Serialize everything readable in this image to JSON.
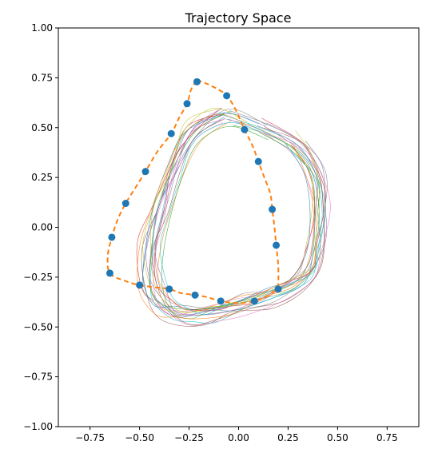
{
  "chart_data": {
    "type": "scatter",
    "title": "Trajectory Space",
    "xlabel": "",
    "ylabel": "",
    "xlim": [
      -0.91,
      0.91
    ],
    "ylim": [
      -1.0,
      1.0
    ],
    "grid": false,
    "x_ticks": [
      -0.75,
      -0.5,
      -0.25,
      0.0,
      0.25,
      0.5,
      0.75
    ],
    "x_tick_labels": [
      "−0.75",
      "−0.50",
      "−0.25",
      "0.00",
      "0.25",
      "0.50",
      "0.75"
    ],
    "y_ticks": [
      1.0,
      0.75,
      0.5,
      0.25,
      0.0,
      -0.25,
      -0.5,
      -0.75,
      -1.0
    ],
    "y_tick_labels": [
      "1.00",
      "0.75",
      "0.50",
      "0.25",
      "0.00",
      "−0.25",
      "−0.50",
      "−0.75",
      "−1.00"
    ],
    "colors": {
      "points": "#1f77b4",
      "dashed_curve": "#ff7f0e",
      "trajectories": [
        "#1f77b4",
        "#ff7f0e",
        "#2ca02c",
        "#d62728",
        "#9467bd",
        "#8c564b",
        "#e377c2",
        "#7f7f7f",
        "#bcbd22",
        "#17becf"
      ]
    },
    "points": [
      {
        "x": -0.21,
        "y": 0.73
      },
      {
        "x": -0.06,
        "y": 0.66
      },
      {
        "x": -0.26,
        "y": 0.62
      },
      {
        "x": 0.03,
        "y": 0.49
      },
      {
        "x": -0.34,
        "y": 0.47
      },
      {
        "x": 0.1,
        "y": 0.33
      },
      {
        "x": -0.47,
        "y": 0.28
      },
      {
        "x": -0.57,
        "y": 0.12
      },
      {
        "x": 0.17,
        "y": 0.09
      },
      {
        "x": -0.64,
        "y": -0.05
      },
      {
        "x": 0.19,
        "y": -0.09
      },
      {
        "x": -0.65,
        "y": -0.23
      },
      {
        "x": -0.5,
        "y": -0.29
      },
      {
        "x": -0.35,
        "y": -0.31
      },
      {
        "x": 0.2,
        "y": -0.31
      },
      {
        "x": -0.22,
        "y": -0.34
      },
      {
        "x": -0.09,
        "y": -0.37
      },
      {
        "x": 0.08,
        "y": -0.37
      }
    ],
    "dashed_curve": [
      [
        -0.21,
        0.74
      ],
      [
        -0.16,
        0.72
      ],
      [
        -0.1,
        0.69
      ],
      [
        -0.06,
        0.66
      ],
      [
        -0.02,
        0.6
      ],
      [
        0.03,
        0.49
      ],
      [
        0.07,
        0.41
      ],
      [
        0.1,
        0.33
      ],
      [
        0.13,
        0.25
      ],
      [
        0.16,
        0.17
      ],
      [
        0.17,
        0.09
      ],
      [
        0.18,
        0.01
      ],
      [
        0.19,
        -0.09
      ],
      [
        0.2,
        -0.19
      ],
      [
        0.2,
        -0.28
      ],
      [
        0.19,
        -0.31
      ],
      [
        0.15,
        -0.34
      ],
      [
        0.08,
        -0.37
      ],
      [
        0.0,
        -0.38
      ],
      [
        -0.09,
        -0.37
      ],
      [
        -0.16,
        -0.35
      ],
      [
        -0.22,
        -0.34
      ],
      [
        -0.29,
        -0.33
      ],
      [
        -0.35,
        -0.31
      ],
      [
        -0.43,
        -0.3
      ],
      [
        -0.5,
        -0.29
      ],
      [
        -0.57,
        -0.27
      ],
      [
        -0.65,
        -0.23
      ],
      [
        -0.66,
        -0.14
      ],
      [
        -0.64,
        -0.05
      ],
      [
        -0.61,
        0.04
      ],
      [
        -0.57,
        0.12
      ],
      [
        -0.52,
        0.2
      ],
      [
        -0.47,
        0.28
      ],
      [
        -0.41,
        0.38
      ],
      [
        -0.34,
        0.47
      ],
      [
        -0.3,
        0.55
      ],
      [
        -0.26,
        0.62
      ],
      [
        -0.24,
        0.69
      ],
      [
        -0.21,
        0.74
      ]
    ],
    "trajectories": {
      "count": 20,
      "base_loop": [
        [
          -0.08,
          0.57
        ],
        [
          0.1,
          0.51
        ],
        [
          0.28,
          0.42
        ],
        [
          0.38,
          0.28
        ],
        [
          0.4,
          0.1
        ],
        [
          0.38,
          -0.1
        ],
        [
          0.33,
          -0.24
        ],
        [
          0.18,
          -0.33
        ],
        [
          0.0,
          -0.38
        ],
        [
          -0.15,
          -0.42
        ],
        [
          -0.27,
          -0.44
        ],
        [
          -0.37,
          -0.4
        ],
        [
          -0.44,
          -0.3
        ],
        [
          -0.45,
          -0.1
        ],
        [
          -0.4,
          0.1
        ],
        [
          -0.33,
          0.3
        ],
        [
          -0.24,
          0.48
        ],
        [
          -0.08,
          0.57
        ],
        [
          0.1,
          0.51
        ]
      ]
    }
  }
}
